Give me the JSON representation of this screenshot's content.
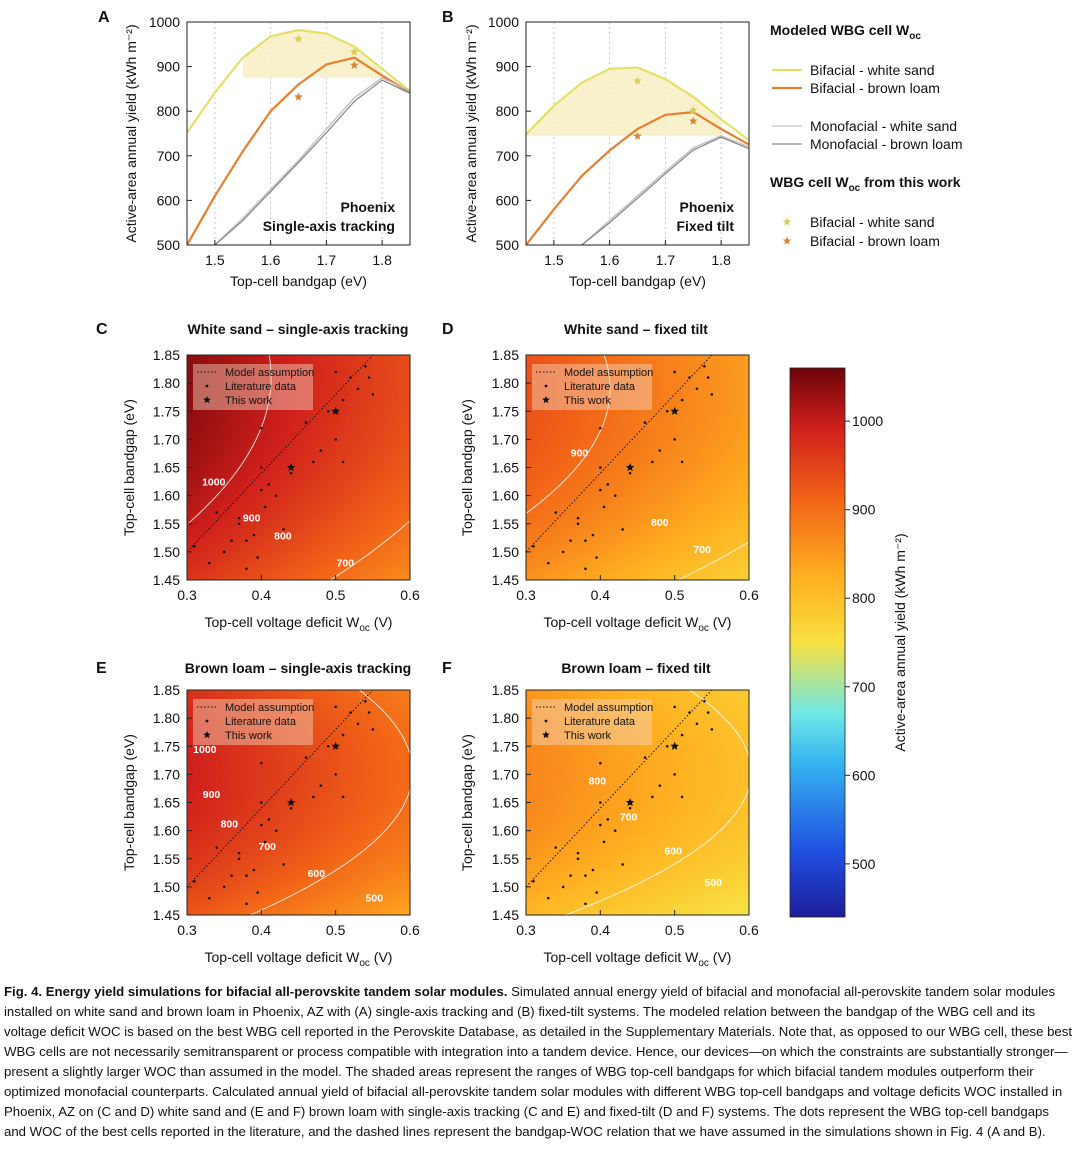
{
  "figure": {
    "panel_a": {
      "letter": "A",
      "label_lines": [
        "Phoenix",
        "Single-axis tracking"
      ]
    },
    "panel_b": {
      "letter": "B",
      "label_lines": [
        "Phoenix",
        "Fixed tilt"
      ]
    },
    "top_xlabel": "Top-cell bandgap (eV)",
    "top_ylabel": "Active-area annual yield (kWh m⁻²)",
    "legend": {
      "title1": "Modeled WBG cell W",
      "title2": "WBG cell W",
      "title2_suffix": " from this work",
      "sub": "oc",
      "items": [
        "Bifacial - white sand",
        "Bifacial - brown loam",
        "Monofacial - white sand",
        "Monofacial - brown loam"
      ],
      "stars": [
        "Bifacial - white sand",
        "Bifacial - brown loam"
      ]
    },
    "heat_panels": [
      {
        "letter": "C",
        "title": "White sand – single-axis tracking"
      },
      {
        "letter": "D",
        "title": "White sand – fixed tilt"
      },
      {
        "letter": "E",
        "title": "Brown loam – single-axis tracking"
      },
      {
        "letter": "F",
        "title": "Brown loam – fixed tilt"
      }
    ],
    "heat_xlabel": "Top-cell voltage deficit W",
    "heat_xlabel_sub": "oc",
    "heat_xlabel_unit": " (V)",
    "heat_ylabel": "Top-cell bandgap (eV)",
    "heat_legend": [
      "Model assumption",
      "Literature data",
      "This work"
    ],
    "colorbar_label": "Active-area annual yield (kWh m⁻²)",
    "colorbar_ticks": [
      "500",
      "600",
      "700",
      "800",
      "900",
      "1000"
    ],
    "contour_labels": {
      "C": [
        "1000",
        "900",
        "800",
        "700"
      ],
      "D": [
        "900",
        "800",
        "700"
      ],
      "E": [
        "1000",
        "900",
        "800",
        "700",
        "600",
        "500"
      ],
      "F": [
        "800",
        "700",
        "600",
        "500"
      ]
    }
  },
  "chart_data": [
    {
      "type": "line",
      "panel": "A",
      "title": "Phoenix, Single-axis tracking",
      "xlabel": "Top-cell bandgap (eV)",
      "ylabel": "Active-area annual yield (kWh m⁻²)",
      "xlim": [
        1.45,
        1.85
      ],
      "ylim": [
        500,
        1000
      ],
      "xticks": [
        "1.5",
        "1.6",
        "1.7",
        "1.8"
      ],
      "yticks": [
        "500",
        "600",
        "700",
        "800",
        "900",
        "1000"
      ],
      "series": [
        {
          "name": "Bifacial - white sand",
          "x": [
            1.45,
            1.5,
            1.55,
            1.6,
            1.65,
            1.7,
            1.75,
            1.8,
            1.85
          ],
          "y": [
            752,
            842,
            920,
            968,
            982,
            974,
            945,
            895,
            845
          ]
        },
        {
          "name": "Bifacial - brown loam",
          "x": [
            1.45,
            1.5,
            1.55,
            1.6,
            1.65,
            1.7,
            1.75,
            1.8,
            1.85
          ],
          "y": [
            500,
            610,
            710,
            800,
            860,
            905,
            920,
            880,
            842
          ]
        },
        {
          "name": "Monofacial - white sand",
          "x": [
            1.5,
            1.55,
            1.6,
            1.65,
            1.7,
            1.75,
            1.8,
            1.85
          ],
          "y": [
            500,
            560,
            625,
            690,
            760,
            830,
            875,
            845
          ]
        },
        {
          "name": "Monofacial - brown loam",
          "x": [
            1.5,
            1.55,
            1.6,
            1.65,
            1.7,
            1.75,
            1.8,
            1.85
          ],
          "y": [
            500,
            555,
            620,
            685,
            752,
            822,
            870,
            840
          ]
        },
        {
          "name": "WBG this work - white sand",
          "x": [
            1.65,
            1.75
          ],
          "y": [
            962,
            933
          ]
        },
        {
          "name": "WBG this work - brown loam",
          "x": [
            1.65,
            1.75
          ],
          "y": [
            832,
            903
          ]
        }
      ]
    },
    {
      "type": "line",
      "panel": "B",
      "title": "Phoenix, Fixed tilt",
      "xlabel": "Top-cell bandgap (eV)",
      "ylabel": "Active-area annual yield (kWh m⁻²)",
      "xlim": [
        1.45,
        1.85
      ],
      "ylim": [
        500,
        1000
      ],
      "xticks": [
        "1.5",
        "1.6",
        "1.7",
        "1.8"
      ],
      "yticks": [
        "500",
        "600",
        "700",
        "800",
        "900",
        "1000"
      ],
      "series": [
        {
          "name": "Bifacial - white sand",
          "x": [
            1.45,
            1.5,
            1.55,
            1.6,
            1.65,
            1.7,
            1.75,
            1.8,
            1.85
          ],
          "y": [
            748,
            812,
            864,
            895,
            898,
            872,
            832,
            782,
            735
          ]
        },
        {
          "name": "Bifacial - brown loam",
          "x": [
            1.45,
            1.5,
            1.55,
            1.6,
            1.65,
            1.7,
            1.75,
            1.8,
            1.85
          ],
          "y": [
            500,
            580,
            655,
            712,
            760,
            792,
            798,
            760,
            725
          ]
        },
        {
          "name": "Monofacial - white sand",
          "x": [
            1.55,
            1.6,
            1.65,
            1.7,
            1.75,
            1.8,
            1.85
          ],
          "y": [
            500,
            555,
            610,
            665,
            718,
            745,
            720
          ]
        },
        {
          "name": "Monofacial - brown loam",
          "x": [
            1.55,
            1.6,
            1.65,
            1.7,
            1.75,
            1.8,
            1.85
          ],
          "y": [
            500,
            550,
            605,
            660,
            713,
            742,
            716
          ]
        },
        {
          "name": "WBG this work - white sand",
          "x": [
            1.65,
            1.75
          ],
          "y": [
            868,
            802
          ]
        },
        {
          "name": "WBG this work - brown loam",
          "x": [
            1.65,
            1.75
          ],
          "y": [
            744,
            778
          ]
        }
      ]
    },
    {
      "type": "heatmap",
      "panels": [
        "C",
        "D",
        "E",
        "F"
      ],
      "xlabel": "Top-cell voltage deficit Woc (V)",
      "ylabel": "Top-cell bandgap (eV)",
      "xlim": [
        0.3,
        0.6
      ],
      "ylim": [
        1.45,
        1.85
      ],
      "xticks": [
        "0.3",
        "0.4",
        "0.5",
        "0.6"
      ],
      "yticks": [
        "1.45",
        "1.50",
        "1.55",
        "1.60",
        "1.65",
        "1.70",
        "1.75",
        "1.80",
        "1.85"
      ],
      "colorbar_range": [
        440,
        1060
      ],
      "model_assumption": {
        "x": [
          0.3,
          0.55
        ],
        "y": [
          1.5,
          1.85
        ]
      },
      "literature_data": {
        "x": [
          0.31,
          0.33,
          0.34,
          0.35,
          0.37,
          0.37,
          0.38,
          0.39,
          0.395,
          0.4,
          0.4,
          0.4,
          0.405,
          0.41,
          0.42,
          0.43,
          0.44,
          0.46,
          0.47,
          0.48,
          0.49,
          0.5,
          0.5,
          0.51,
          0.51,
          0.52,
          0.53,
          0.54,
          0.545,
          0.55,
          0.38,
          0.36
        ],
        "y": [
          1.51,
          1.48,
          1.57,
          1.5,
          1.55,
          1.56,
          1.52,
          1.53,
          1.49,
          1.72,
          1.65,
          1.61,
          1.58,
          1.62,
          1.6,
          1.54,
          1.64,
          1.73,
          1.66,
          1.68,
          1.75,
          1.82,
          1.7,
          1.77,
          1.66,
          1.81,
          1.79,
          1.83,
          1.81,
          1.78,
          1.47,
          1.52
        ]
      },
      "this_work": {
        "x": [
          0.44,
          0.5
        ],
        "y": [
          1.65,
          1.75
        ]
      }
    }
  ],
  "caption": {
    "title": "Fig. 4. Energy yield simulations for bifacial all-perovskite tandem solar modules.",
    "body": " Simulated annual energy yield of bifacial and monofacial all-perovskite tandem solar modules installed on white sand and brown loam in Phoenix, AZ with (A) single-axis tracking and (B) fixed-tilt systems. The modeled relation between the bandgap of the WBG cell and its voltage deficit WOC is based on the best WBG cell reported in the Perovskite Database, as detailed in the Supplementary Materials. Note that, as opposed to our WBG cell, these best WBG cells are not necessarily semitransparent or process compatible with integration into a tandem device. Hence, our devices—on which the constraints are substantially stronger—present a slightly larger WOC than assumed in the model. The shaded areas represent the ranges of WBG top-cell bandgaps for which bifacial tandem modules outperform their optimized monofacial counterparts. Calculated annual yield of bifacial all-perovskite tandem solar modules with different WBG top-cell bandgaps and voltage deficits WOC installed in Phoenix, AZ on (C and D) white sand and (E and F) brown loam with single-axis tracking (C and E) and fixed-tilt (D and F) systems. The dots represent the WBG top-cell bandgaps and WOC of the best cells reported in the literature, and the dashed lines represent the bandgap-WOC relation that we have assumed in the simulations shown in Fig. 4 (A and B)."
  }
}
